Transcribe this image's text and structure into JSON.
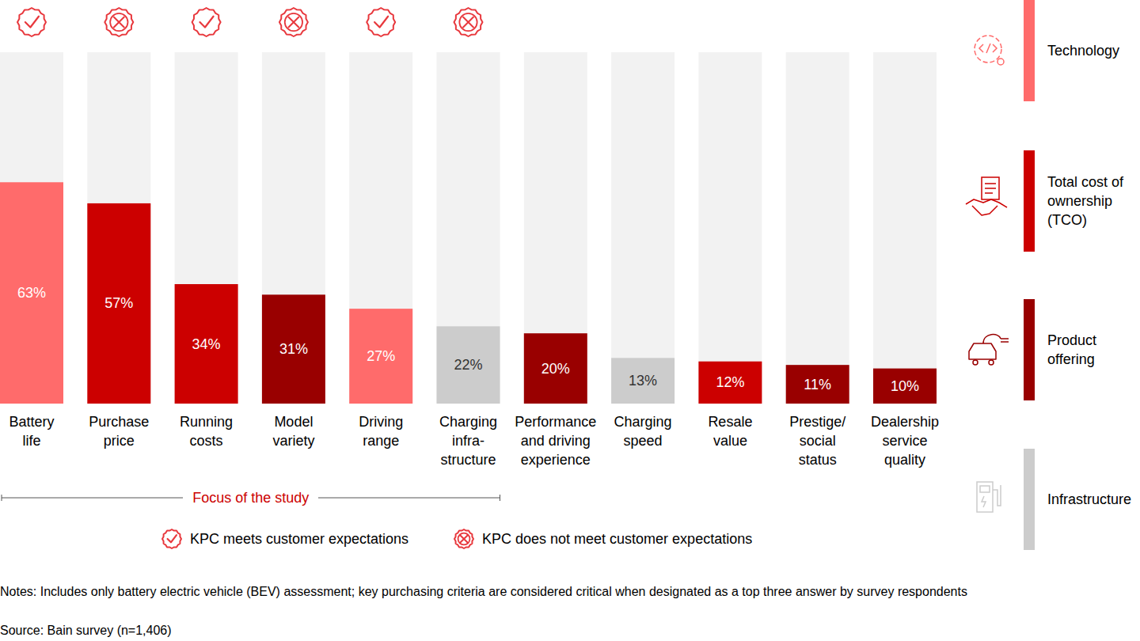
{
  "chart_data": {
    "type": "bar",
    "categories": [
      "Battery\nlife",
      "Purchase\nprice",
      "Running\ncosts",
      "Model\nvariety",
      "Driving\nrange",
      "Charging\ninfra-\nstructure",
      "Performance\nand driving\nexperience",
      "Charging speed",
      "Resale\nvalue",
      "Prestige/\nsocial\nstatus",
      "Dealership\nservice\nquality"
    ],
    "values": [
      63,
      57,
      34,
      31,
      27,
      22,
      20,
      13,
      12,
      11,
      10
    ],
    "value_labels": [
      "63%",
      "57%",
      "34%",
      "31%",
      "27%",
      "22%",
      "20%",
      "13%",
      "12%",
      "11%",
      "10%"
    ],
    "colors": [
      "#ff6b6b",
      "#cc0000",
      "#cc0000",
      "#990000",
      "#ff6b6b",
      "#cccccc",
      "#990000",
      "#cccccc",
      "#cc0000",
      "#990000",
      "#990000"
    ],
    "ylim": [
      0,
      100
    ],
    "data_labels": true,
    "tick_labels": "x",
    "kpc_marker": [
      "check",
      "cross",
      "check",
      "cross",
      "check",
      "cross",
      null,
      null,
      null,
      null,
      null
    ],
    "marker_legend": [
      {
        "marker": "check",
        "label": "KPC meets customer expectations"
      },
      {
        "marker": "cross",
        "label": "KPC does not meet customer expectations"
      }
    ],
    "groups": [
      {
        "name": "Technology",
        "color": "#ff6b6b"
      },
      {
        "name": "Total cost of\nownership\n(TCO)",
        "color": "#cc0000"
      },
      {
        "name": "Product\noffering",
        "color": "#990000"
      },
      {
        "name": "Infrastructure",
        "color": "#cccccc"
      }
    ],
    "annotations": [
      {
        "text": "Focus of the study",
        "span": [
          0,
          5
        ]
      }
    ],
    "notes": "Notes: Includes only battery electric vehicle (BEV) assessment; key purchasing criteria are considered critical when designated as a top three answer by survey respondents",
    "source": "Source: Bain survey (n=1,406)"
  }
}
